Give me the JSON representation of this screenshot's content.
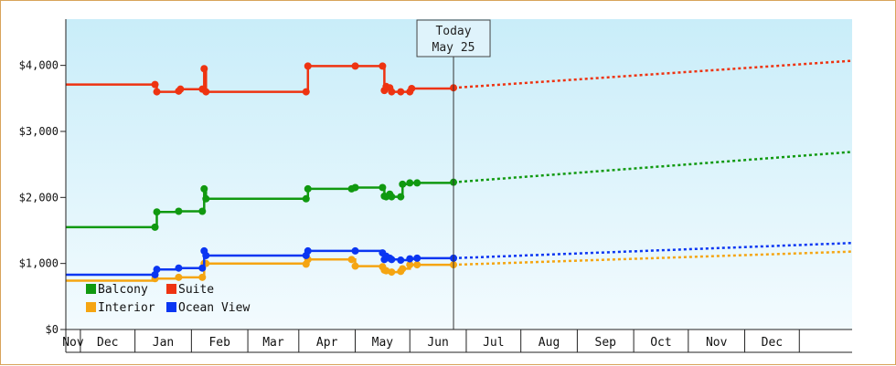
{
  "chart_data": {
    "type": "line",
    "title": "",
    "xlabel": "",
    "ylabel": "",
    "x_axis": {
      "type": "date",
      "range": [
        "2024-10-24",
        "2025-12-30"
      ],
      "tick_labels": [
        "Nov",
        "Dec",
        "Jan",
        "Feb",
        "Mar",
        "Apr",
        "May",
        "Jun",
        "Jul",
        "Aug",
        "Sep",
        "Oct",
        "Nov",
        "Dec"
      ]
    },
    "y_axis": {
      "range": [
        0,
        4700
      ],
      "ticks": [
        0,
        1000,
        2000,
        3000,
        4000
      ],
      "tick_labels": [
        "$0",
        "$1,000",
        "$2,000",
        "$3,000",
        "$4,000"
      ]
    },
    "grid": false,
    "legend": "bottom-left",
    "today_marker": {
      "line1": "Today",
      "line2": "May 25",
      "date": "2025-05-25"
    },
    "series": [
      {
        "name": "Balcony",
        "color": "#109910",
        "points": [
          [
            "2024-10-24",
            1550
          ],
          [
            "2024-12-12",
            1550
          ],
          [
            "2024-12-13",
            1780
          ],
          [
            "2024-12-25",
            1790
          ],
          [
            "2025-01-07",
            1790
          ],
          [
            "2025-01-08",
            2130
          ],
          [
            "2025-01-09",
            1980
          ],
          [
            "2025-03-05",
            1980
          ],
          [
            "2025-03-06",
            2130
          ],
          [
            "2025-03-30",
            2130
          ],
          [
            "2025-04-01",
            2150
          ],
          [
            "2025-04-16",
            2150
          ],
          [
            "2025-04-17",
            2020
          ],
          [
            "2025-04-18",
            2010
          ],
          [
            "2025-04-20",
            2050
          ],
          [
            "2025-04-21",
            2010
          ],
          [
            "2025-04-26",
            2010
          ],
          [
            "2025-04-27",
            2200
          ],
          [
            "2025-05-01",
            2220
          ],
          [
            "2025-05-05",
            2220
          ],
          [
            "2025-05-25",
            2230
          ]
        ],
        "forecast": [
          [
            "2025-05-25",
            2230
          ],
          [
            "2025-12-30",
            2690
          ]
        ]
      },
      {
        "name": "Suite",
        "color": "#ee3311",
        "points": [
          [
            "2024-10-24",
            3710
          ],
          [
            "2024-12-12",
            3710
          ],
          [
            "2024-12-13",
            3600
          ],
          [
            "2024-12-25",
            3610
          ],
          [
            "2024-12-26",
            3640
          ],
          [
            "2025-01-07",
            3640
          ],
          [
            "2025-01-08",
            3950
          ],
          [
            "2025-01-09",
            3600
          ],
          [
            "2025-03-05",
            3600
          ],
          [
            "2025-03-06",
            3990
          ],
          [
            "2025-04-01",
            3990
          ],
          [
            "2025-04-16",
            3990
          ],
          [
            "2025-04-17",
            3620
          ],
          [
            "2025-04-18",
            3680
          ],
          [
            "2025-04-20",
            3660
          ],
          [
            "2025-04-21",
            3600
          ],
          [
            "2025-04-26",
            3600
          ],
          [
            "2025-05-01",
            3600
          ],
          [
            "2025-05-02",
            3650
          ],
          [
            "2025-05-25",
            3660
          ]
        ],
        "forecast": [
          [
            "2025-05-25",
            3660
          ],
          [
            "2025-12-30",
            4070
          ]
        ]
      },
      {
        "name": "Interior",
        "color": "#f5a512",
        "points": [
          [
            "2024-10-24",
            740
          ],
          [
            "2024-12-12",
            770
          ],
          [
            "2024-12-25",
            790
          ],
          [
            "2025-01-07",
            790
          ],
          [
            "2025-01-08",
            1000
          ],
          [
            "2025-01-09",
            1000
          ],
          [
            "2025-03-05",
            990
          ],
          [
            "2025-03-06",
            1060
          ],
          [
            "2025-03-30",
            1060
          ],
          [
            "2025-04-01",
            960
          ],
          [
            "2025-04-16",
            950
          ],
          [
            "2025-04-17",
            900
          ],
          [
            "2025-04-18",
            890
          ],
          [
            "2025-04-21",
            870
          ],
          [
            "2025-04-26",
            880
          ],
          [
            "2025-04-27",
            920
          ],
          [
            "2025-05-01",
            980
          ],
          [
            "2025-05-05",
            980
          ],
          [
            "2025-05-25",
            980
          ]
        ],
        "forecast": [
          [
            "2025-05-25",
            980
          ],
          [
            "2025-12-30",
            1180
          ]
        ]
      },
      {
        "name": "Ocean View",
        "color": "#0a36f2",
        "points": [
          [
            "2024-10-24",
            830
          ],
          [
            "2024-12-12",
            830
          ],
          [
            "2024-12-13",
            910
          ],
          [
            "2024-12-25",
            930
          ],
          [
            "2025-01-07",
            930
          ],
          [
            "2025-01-08",
            1190
          ],
          [
            "2025-01-09",
            1120
          ],
          [
            "2025-03-05",
            1120
          ],
          [
            "2025-03-06",
            1190
          ],
          [
            "2025-04-01",
            1190
          ],
          [
            "2025-04-16",
            1160
          ],
          [
            "2025-04-17",
            1060
          ],
          [
            "2025-04-18",
            1110
          ],
          [
            "2025-04-20",
            1080
          ],
          [
            "2025-04-21",
            1060
          ],
          [
            "2025-04-26",
            1050
          ],
          [
            "2025-05-01",
            1070
          ],
          [
            "2025-05-05",
            1080
          ],
          [
            "2025-05-25",
            1080
          ]
        ],
        "forecast": [
          [
            "2025-05-25",
            1080
          ],
          [
            "2025-12-30",
            1310
          ]
        ]
      }
    ]
  }
}
